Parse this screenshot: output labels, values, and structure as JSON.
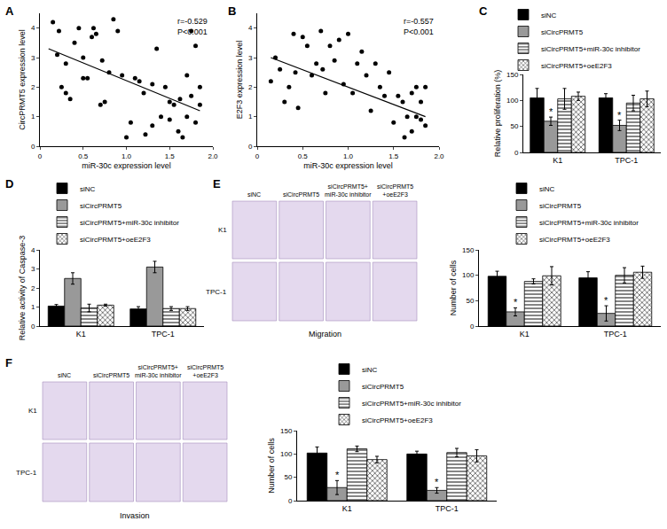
{
  "chart_data": [
    {
      "panel_label": "A",
      "type": "scatter",
      "color": "#000000",
      "x": [
        0.15,
        0.2,
        0.22,
        0.25,
        0.3,
        0.3,
        0.35,
        0.4,
        0.45,
        0.5,
        0.5,
        0.55,
        0.6,
        0.62,
        0.65,
        0.7,
        0.72,
        0.75,
        0.8,
        0.85,
        0.9,
        0.95,
        1.0,
        1.05,
        1.1,
        1.15,
        1.2,
        1.22,
        1.3,
        1.3,
        1.35,
        1.4,
        1.45,
        1.5,
        1.5,
        1.55,
        1.6,
        1.62,
        1.65,
        1.7,
        1.7,
        1.75,
        1.75,
        1.8,
        1.8,
        1.85,
        1.85
      ],
      "values": [
        4.2,
        3.1,
        3.9,
        2.0,
        1.8,
        2.8,
        1.6,
        3.5,
        4.0,
        2.3,
        3.0,
        2.3,
        3.7,
        4.0,
        3.8,
        1.4,
        2.9,
        1.5,
        2.5,
        4.3,
        3.9,
        2.4,
        0.3,
        0.8,
        2.3,
        2.2,
        1.8,
        0.4,
        2.1,
        0.7,
        3.3,
        1.0,
        2.0,
        0.9,
        1.5,
        1.4,
        0.5,
        1.6,
        0.3,
        2.4,
        1.0,
        3.9,
        1.7,
        0.8,
        3.4,
        1.4,
        2.0
      ],
      "trend_line": {
        "x": [
          0.1,
          1.85
        ],
        "y": [
          3.3,
          1.2
        ]
      },
      "xlabel": "miR-30c expression level",
      "ylabel": "CircPRMT5 expression level",
      "xlim": [
        0,
        2
      ],
      "ylim": [
        0,
        4.5
      ],
      "xticks": [
        0,
        0.5,
        {
          "value": 1,
          "label": "1.0"
        },
        1.5,
        {
          "value": 2,
          "label": "2.0"
        }
      ],
      "yticks": [
        0,
        1,
        2,
        3,
        4
      ],
      "annotations": [
        "r=-0.529",
        "P<0.001"
      ],
      "grid": false
    },
    {
      "panel_label": "B",
      "type": "scatter",
      "color": "#000000",
      "x": [
        0.15,
        0.2,
        0.25,
        0.3,
        0.35,
        0.4,
        0.42,
        0.45,
        0.5,
        0.55,
        0.6,
        0.65,
        0.7,
        0.72,
        0.75,
        0.8,
        0.85,
        0.9,
        0.95,
        1.0,
        1.05,
        1.1,
        1.15,
        1.2,
        1.25,
        1.3,
        1.35,
        1.4,
        1.45,
        1.5,
        1.55,
        1.6,
        1.62,
        1.65,
        1.7,
        1.7,
        1.75,
        1.75,
        1.8,
        1.8,
        1.85,
        1.85
      ],
      "values": [
        2.2,
        3.0,
        2.6,
        1.5,
        2.0,
        3.8,
        2.5,
        1.3,
        3.7,
        3.4,
        2.4,
        2.8,
        3.9,
        2.6,
        1.8,
        3.4,
        2.9,
        3.6,
        2.1,
        3.8,
        1.8,
        2.8,
        3.2,
        2.4,
        1.2,
        2.8,
        2.0,
        1.7,
        2.5,
        0.8,
        1.7,
        1.5,
        0.3,
        1.0,
        1.8,
        0.5,
        2.0,
        1.0,
        0.9,
        1.5,
        2.0,
        0.7
      ],
      "trend_line": {
        "x": [
          0.15,
          1.85
        ],
        "y": [
          3.0,
          1.0
        ]
      },
      "xlabel": "miR-30c expression level",
      "ylabel": "E2F3 expression level",
      "xlim": [
        0,
        2
      ],
      "ylim": [
        0,
        4.5
      ],
      "xticks": [
        0,
        0.5,
        {
          "value": 1,
          "label": "1.0"
        },
        1.5,
        {
          "value": 2,
          "label": "2.0"
        }
      ],
      "yticks": [
        0,
        1,
        2,
        3,
        4
      ],
      "annotations": [
        "r=-0.557",
        "P<0.001"
      ],
      "grid": false
    },
    {
      "panel_label": "C",
      "type": "bar",
      "categories": [
        "K1",
        "TPC-1"
      ],
      "series": [
        {
          "name": "siNC",
          "color": "#000000",
          "values": [
            105,
            105
          ],
          "errors": [
            18,
            8
          ]
        },
        {
          "name": "siCircPRMT5",
          "color": "#999999",
          "values": [
            60,
            52
          ],
          "errors": [
            8,
            10
          ]
        },
        {
          "name": "siCircPRMT5+miR-30c inhibitor",
          "color": "#ffffff",
          "values": [
            103,
            95
          ],
          "errors": [
            20,
            15
          ]
        },
        {
          "name": "siCircPRMT5+oeE2F3",
          "color": "#ffffff",
          "values": [
            108,
            103
          ],
          "errors": [
            8,
            15
          ]
        }
      ],
      "ylabel": "Relative proliferation (%)",
      "ylim": [
        0,
        150
      ],
      "yticks": [
        0,
        50,
        100,
        150
      ],
      "annotations": [
        {
          "text": "*",
          "category": "K1",
          "series": "siCircPRMT5"
        },
        {
          "text": "*",
          "category": "TPC-1",
          "series": "siCircPRMT5"
        }
      ],
      "legend": "top right",
      "grid": false
    },
    {
      "panel_label": "D",
      "type": "bar",
      "categories": [
        "K1",
        "TPC-1"
      ],
      "series": [
        {
          "name": "siNC",
          "color": "#000000",
          "values": [
            1.05,
            0.9
          ],
          "errors": [
            0.08,
            0.12
          ]
        },
        {
          "name": "siCircPRMT5",
          "color": "#999999",
          "values": [
            2.5,
            3.1
          ],
          "errors": [
            0.3,
            0.3
          ]
        },
        {
          "name": "siCircPRMT5+miR-30c inhibitor",
          "color": "#ffffff",
          "values": [
            0.95,
            0.92
          ],
          "errors": [
            0.2,
            0.1
          ]
        },
        {
          "name": "siCircPRMT5+oeE2F3",
          "color": "#ffffff",
          "values": [
            1.1,
            0.92
          ],
          "errors": [
            0.05,
            0.1
          ]
        }
      ],
      "ylabel": "Relative activity of Caspase-3",
      "ylim": [
        0,
        4
      ],
      "yticks": [
        0,
        1,
        2,
        3,
        4
      ],
      "annotations": [],
      "legend": "top left",
      "grid": false
    },
    {
      "panel_label": "E",
      "type": "bar",
      "categories": [
        "K1",
        "TPC-1"
      ],
      "series": [
        {
          "name": "siNC",
          "color": "#000000",
          "values": [
            98,
            95
          ],
          "errors": [
            10,
            12
          ]
        },
        {
          "name": "siCircPRMT5",
          "color": "#999999",
          "values": [
            28,
            25
          ],
          "errors": [
            8,
            15
          ]
        },
        {
          "name": "siCircPRMT5+miR-30c inhibitor",
          "color": "#ffffff",
          "values": [
            88,
            100
          ],
          "errors": [
            5,
            15
          ]
        },
        {
          "name": "siCircPRMT5+oeE2F3",
          "color": "#ffffff",
          "values": [
            99,
            106
          ],
          "errors": [
            18,
            12
          ]
        }
      ],
      "ylabel": "Number of cells",
      "ylim": [
        0,
        150
      ],
      "yticks": [
        0,
        50,
        100,
        150
      ],
      "annotations": [
        {
          "text": "*",
          "category": "K1",
          "series": "siCircPRMT5"
        },
        {
          "text": "*",
          "category": "TPC-1",
          "series": "siCircPRMT5"
        }
      ],
      "legend": "top right",
      "grid": false
    },
    {
      "panel_label": "F",
      "type": "bar",
      "categories": [
        "K1",
        "TPC-1"
      ],
      "series": [
        {
          "name": "siNC",
          "color": "#000000",
          "values": [
            102,
            100
          ],
          "errors": [
            13,
            6
          ]
        },
        {
          "name": "siCircPRMT5",
          "color": "#999999",
          "values": [
            28,
            22
          ],
          "errors": [
            15,
            6
          ]
        },
        {
          "name": "siCircPRMT5+miR-30c inhibitor",
          "color": "#ffffff",
          "values": [
            111,
            103
          ],
          "errors": [
            6,
            9
          ]
        },
        {
          "name": "siCircPRMT5+oeE2F3",
          "color": "#ffffff",
          "values": [
            88,
            96
          ],
          "errors": [
            7,
            13
          ]
        }
      ],
      "ylabel": "Number of cells",
      "ylim": [
        0,
        150
      ],
      "yticks": [
        0,
        50,
        100,
        150
      ],
      "annotations": [
        {
          "text": "*",
          "category": "K1",
          "series": "siCircPRMT5"
        },
        {
          "text": "*",
          "category": "TPC-1",
          "series": "siCircPRMT5"
        }
      ],
      "legend": "top right",
      "grid": false
    }
  ],
  "image_panels": [
    {
      "panel_label": "E",
      "columns": [
        "siNC",
        "siCircPRMT5",
        "siCircPRMT5+\nmiR-30c inhibitor",
        "siCircPRMT5\n+oeE2F3"
      ],
      "rows": [
        "K1",
        "TPC-1"
      ],
      "caption": "Migration"
    },
    {
      "panel_label": "F",
      "columns": [
        "siNC",
        "siCircPRMT5",
        "siCircPRMT5+\nmiR-30c inhibitor",
        "siCircPRMT5\n+oeE2F3"
      ],
      "rows": [
        "K1",
        "TPC-1"
      ],
      "caption": "Invasion"
    }
  ]
}
